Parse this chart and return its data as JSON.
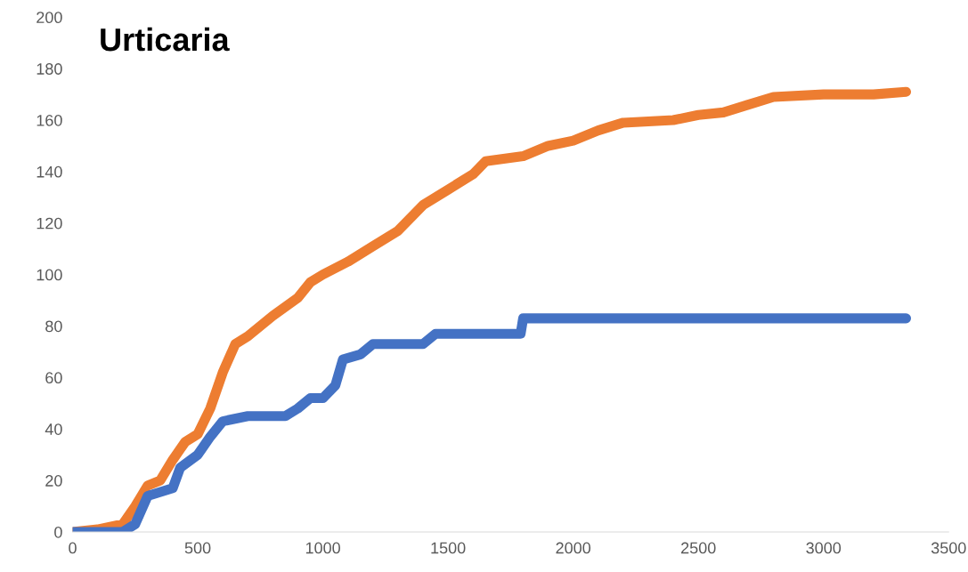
{
  "chart_data": {
    "type": "line",
    "title": "Urticaria",
    "xlim": [
      0,
      3500
    ],
    "xticks": [
      0,
      500,
      1000,
      1500,
      2000,
      2500,
      3000,
      3500
    ],
    "ylim": [
      0,
      200
    ],
    "yticks": [
      0,
      20,
      40,
      60,
      80,
      100,
      120,
      140,
      160,
      180,
      200
    ],
    "grid": false,
    "marker": "none",
    "line_style": "solid",
    "series": [
      {
        "color": "#ed7d31",
        "x": [
          0,
          100,
          200,
          250,
          300,
          350,
          400,
          450,
          500,
          550,
          600,
          650,
          700,
          800,
          900,
          950,
          1000,
          1100,
          1200,
          1300,
          1400,
          1500,
          1600,
          1650,
          1800,
          1900,
          2000,
          2100,
          2200,
          2400,
          2500,
          2600,
          2700,
          2800,
          3000,
          3200,
          3330
        ],
        "values": [
          0,
          1,
          3,
          10,
          18,
          20,
          28,
          35,
          38,
          48,
          62,
          73,
          76,
          84,
          91,
          97,
          100,
          105,
          111,
          117,
          127,
          133,
          139,
          144,
          146,
          150,
          152,
          156,
          159,
          160,
          162,
          163,
          166,
          169,
          170,
          170,
          171
        ]
      },
      {
        "color": "#4472c4",
        "x": [
          0,
          200,
          250,
          300,
          400,
          430,
          500,
          550,
          600,
          700,
          850,
          900,
          950,
          1000,
          1050,
          1080,
          1150,
          1200,
          1400,
          1450,
          1790,
          1800,
          3330
        ],
        "values": [
          0,
          0,
          3,
          14,
          17,
          25,
          30,
          37,
          43,
          45,
          45,
          48,
          52,
          52,
          57,
          67,
          69,
          73,
          73,
          77,
          77,
          83,
          83
        ]
      }
    ]
  }
}
